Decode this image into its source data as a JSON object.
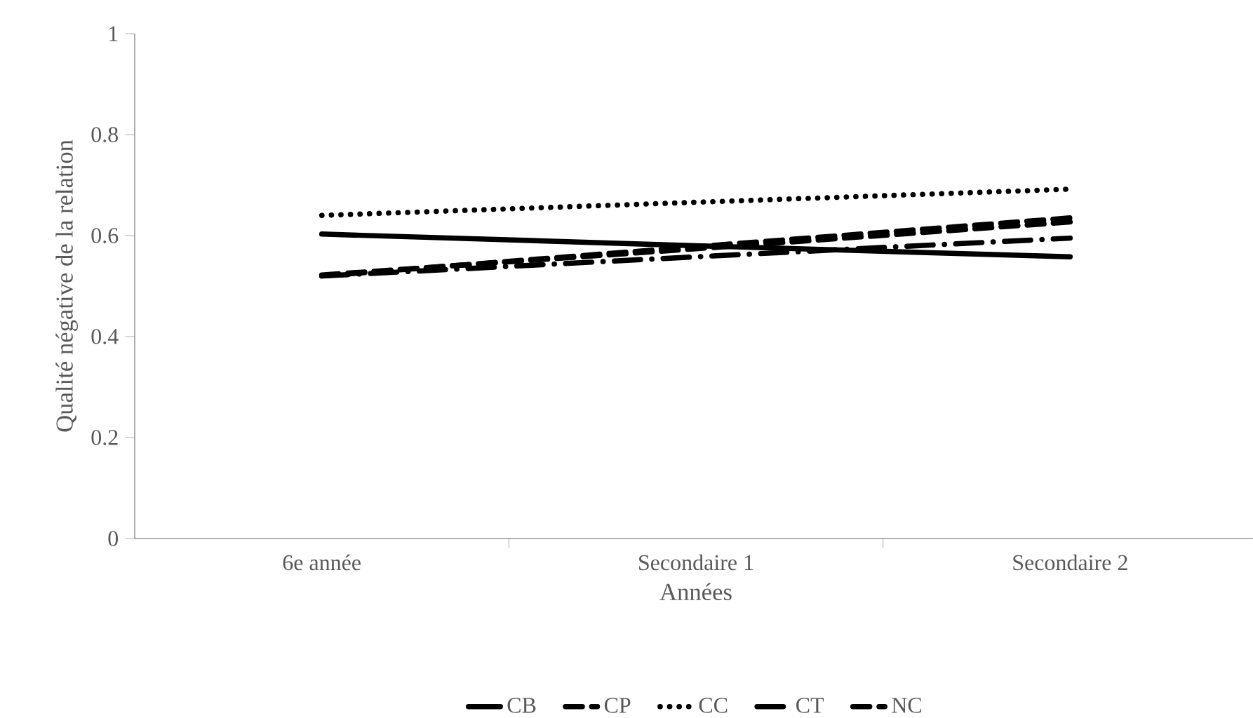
{
  "chart_data": {
    "type": "line",
    "xlabel": "Années",
    "ylabel": "Qualité négative de la relation",
    "categories": [
      "6e année",
      "Secondaire 1",
      "Secondaire 2"
    ],
    "series": [
      {
        "name": "CB",
        "color": "#000000",
        "line_style": "solid",
        "values": [
          0.603,
          0.58,
          0.558
        ]
      },
      {
        "name": "CP",
        "color": "#000000",
        "line_style": "dashed",
        "values": [
          0.52,
          0.578,
          0.635
        ]
      },
      {
        "name": "CC",
        "color": "#000000",
        "line_style": "dotted",
        "values": [
          0.64,
          0.666,
          0.692
        ]
      },
      {
        "name": "CT",
        "color": "#000000",
        "line_style": "dashdot",
        "values": [
          0.52,
          0.558,
          0.595
        ]
      },
      {
        "name": "NC",
        "color": "#000000",
        "line_style": "dashed",
        "values": [
          0.522,
          0.574,
          0.627
        ]
      }
    ],
    "ylim": [
      0,
      1
    ],
    "yticks": [
      0,
      0.2,
      0.4,
      0.6,
      0.8,
      1
    ],
    "grid": false,
    "legend": "bottom",
    "marker": "none"
  }
}
